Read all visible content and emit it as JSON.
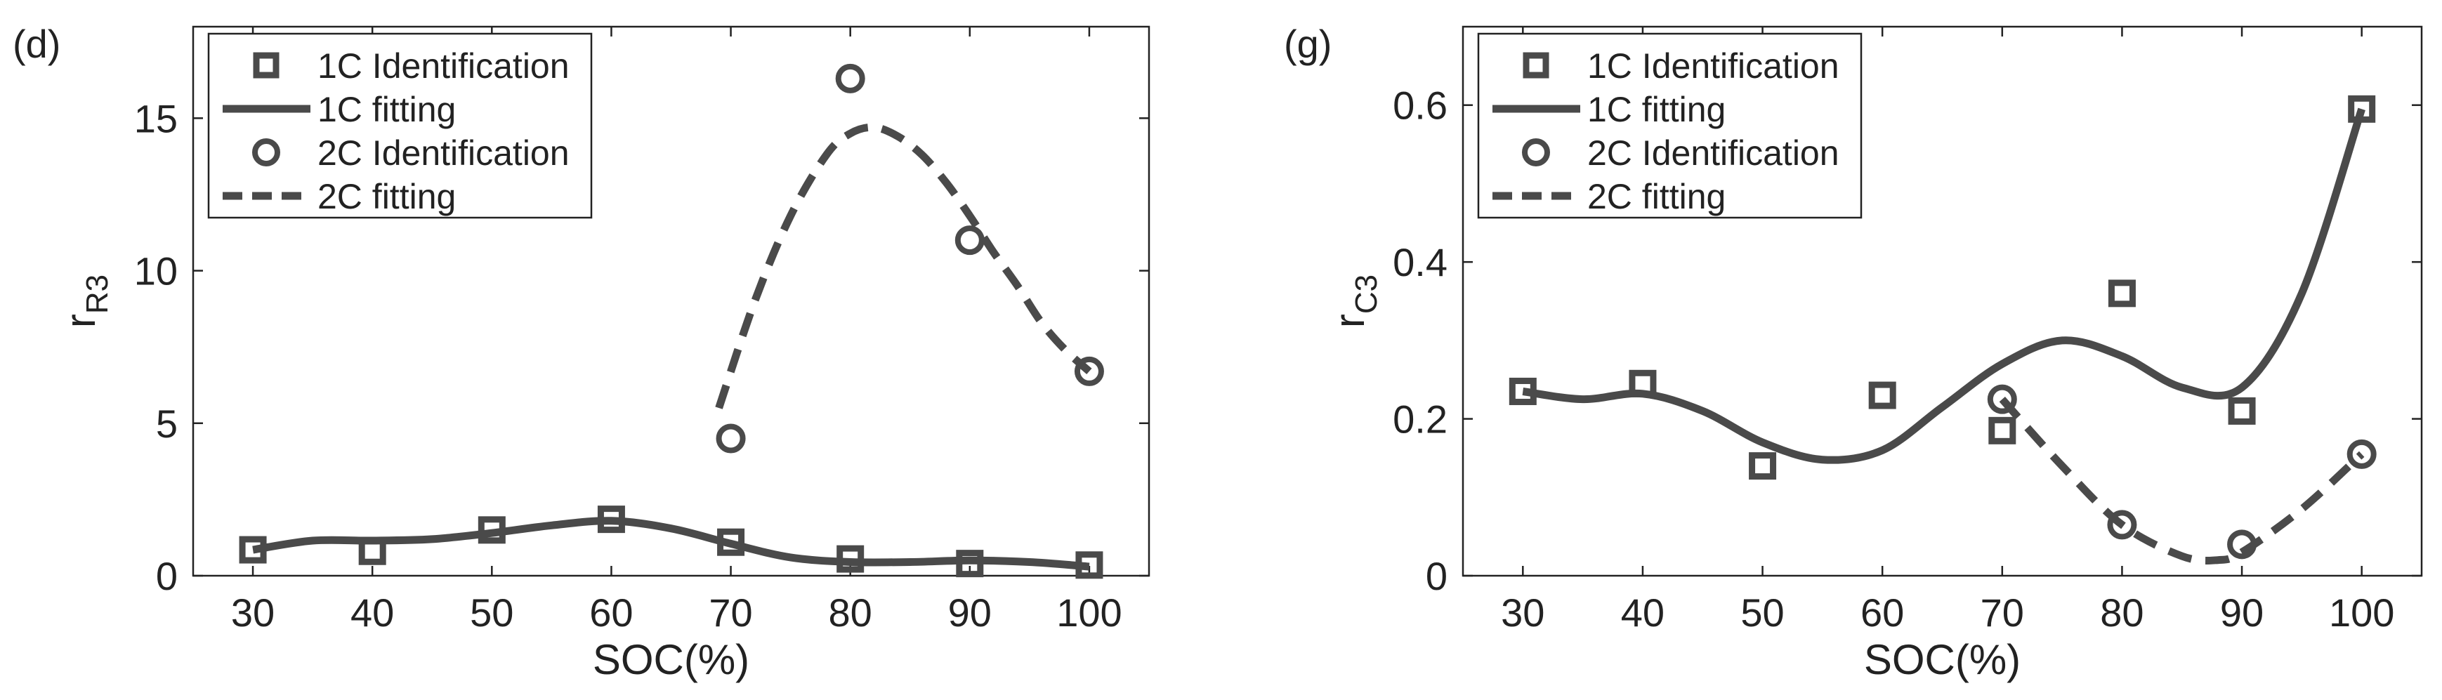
{
  "figure": {
    "ink_color": "#4a4a4a",
    "text_color": "#222222"
  },
  "chart_data": [
    {
      "type": "scatter",
      "panel_label": "(d)",
      "xlabel": "SOC(%)",
      "ylabel_main": "r",
      "ylabel_sub": "R3",
      "xlim": [
        25,
        105
      ],
      "ylim": [
        0,
        18
      ],
      "xticks": [
        30,
        40,
        50,
        60,
        70,
        80,
        90,
        100
      ],
      "yticks": [
        0,
        5,
        10,
        15
      ],
      "grid": false,
      "legend_position": "top-left",
      "series": [
        {
          "name": "1C Identification",
          "kind": "points",
          "marker": "square",
          "x": [
            30,
            40,
            50,
            60,
            70,
            80,
            90,
            100
          ],
          "y": [
            0.85,
            0.8,
            1.5,
            1.85,
            1.1,
            0.55,
            0.4,
            0.35
          ]
        },
        {
          "name": "1C fitting",
          "kind": "line",
          "dash": "solid",
          "x": [
            30,
            35,
            40,
            45,
            50,
            55,
            60,
            65,
            70,
            75,
            80,
            85,
            90,
            95,
            100
          ],
          "y": [
            0.85,
            1.15,
            1.15,
            1.2,
            1.4,
            1.65,
            1.8,
            1.55,
            1.05,
            0.6,
            0.45,
            0.45,
            0.5,
            0.45,
            0.3
          ]
        },
        {
          "name": "2C Identification",
          "kind": "points",
          "marker": "circle",
          "x": [
            70,
            80,
            90,
            100
          ],
          "y": [
            4.5,
            16.3,
            11.0,
            6.7
          ]
        },
        {
          "name": "2C fitting",
          "kind": "line",
          "dash": "dashed",
          "x": [
            69,
            72,
            75,
            78,
            80,
            82,
            84,
            86,
            88,
            90,
            92,
            94,
            96,
            98,
            100
          ],
          "y": [
            5.5,
            9.0,
            11.8,
            13.8,
            14.5,
            14.7,
            14.4,
            13.8,
            12.9,
            11.8,
            10.6,
            9.5,
            8.3,
            7.4,
            6.7
          ]
        }
      ]
    },
    {
      "type": "scatter",
      "panel_label": "(g)",
      "xlabel": "SOC(%)",
      "ylabel_main": "r",
      "ylabel_sub": "C3",
      "xlim": [
        25,
        105
      ],
      "ylim": [
        0,
        0.7
      ],
      "xticks": [
        30,
        40,
        50,
        60,
        70,
        80,
        90,
        100
      ],
      "yticks": [
        0,
        0.2,
        0.4,
        0.6
      ],
      "grid": false,
      "legend_position": "top-left",
      "series": [
        {
          "name": "1C Identification",
          "kind": "points",
          "marker": "square",
          "x": [
            30,
            40,
            50,
            60,
            70,
            80,
            90,
            100
          ],
          "y": [
            0.235,
            0.245,
            0.14,
            0.23,
            0.185,
            0.36,
            0.21,
            0.595
          ]
        },
        {
          "name": "1C fitting",
          "kind": "line",
          "dash": "solid",
          "x": [
            30,
            35,
            40,
            45,
            50,
            55,
            60,
            65,
            70,
            75,
            80,
            85,
            90,
            95,
            100
          ],
          "y": [
            0.235,
            0.225,
            0.232,
            0.21,
            0.17,
            0.148,
            0.16,
            0.215,
            0.27,
            0.3,
            0.28,
            0.24,
            0.24,
            0.36,
            0.595
          ]
        },
        {
          "name": "2C Identification",
          "kind": "points",
          "marker": "circle",
          "x": [
            70,
            80,
            90,
            100
          ],
          "y": [
            0.225,
            0.065,
            0.04,
            0.155
          ]
        },
        {
          "name": "2C fitting",
          "kind": "line",
          "dash": "dashed",
          "x": [
            70,
            75,
            80,
            85,
            88,
            90,
            95,
            100
          ],
          "y": [
            0.225,
            0.14,
            0.065,
            0.025,
            0.02,
            0.03,
            0.085,
            0.155
          ]
        }
      ]
    }
  ]
}
